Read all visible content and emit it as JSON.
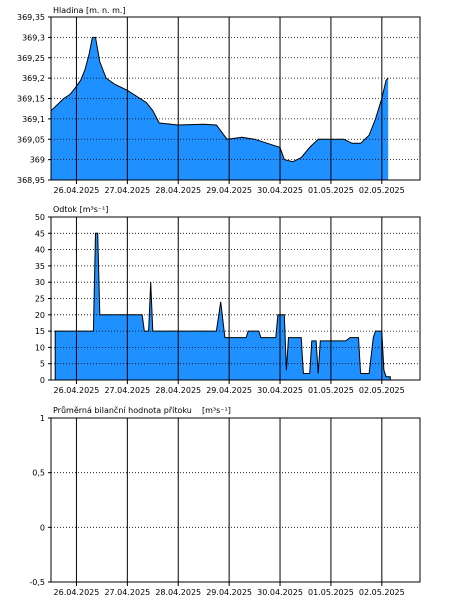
{
  "colors": {
    "fill": "#1e90ff",
    "line": "#000000",
    "grid": "#000000",
    "background": "#ffffff"
  },
  "dates": [
    "26.04.2025",
    "27.04.2025",
    "28.04.2025",
    "29.04.2025",
    "30.04.2025",
    "01.05.2025",
    "02.05.2025"
  ],
  "chart_data": [
    {
      "type": "area",
      "title": "Hladina [m. n. m.]",
      "xlim": [
        "2025-04-25T12:00",
        "2025-05-02T18:00"
      ],
      "ylim": [
        368.95,
        369.35
      ],
      "yticks": [
        368.95,
        369,
        369.05,
        369.1,
        369.15,
        369.2,
        369.25,
        369.3,
        369.35
      ],
      "ytick_labels": [
        "368,95",
        "369",
        "369,05",
        "369,1",
        "369,15",
        "369,2",
        "369,25",
        "369,3",
        "369,35"
      ],
      "x_labels": [
        "26.04.2025",
        "27.04.2025",
        "28.04.2025",
        "29.04.2025",
        "30.04.2025",
        "01.05.2025",
        "02.05.2025"
      ],
      "grid": true,
      "series": [
        {
          "values": [
            {
              "x": "2025-04-25T12:00",
              "y": 369.12
            },
            {
              "x": "2025-04-25T15:00",
              "y": 369.135
            },
            {
              "x": "2025-04-25T18:00",
              "y": 369.15
            },
            {
              "x": "2025-04-25T21:00",
              "y": 369.16
            },
            {
              "x": "2025-04-26T00:00",
              "y": 369.18
            },
            {
              "x": "2025-04-26T02:00",
              "y": 369.195
            },
            {
              "x": "2025-04-26T04:00",
              "y": 369.22
            },
            {
              "x": "2025-04-26T06:00",
              "y": 369.26
            },
            {
              "x": "2025-04-26T07:30",
              "y": 369.3
            },
            {
              "x": "2025-04-26T09:00",
              "y": 369.3
            },
            {
              "x": "2025-04-26T11:00",
              "y": 369.24
            },
            {
              "x": "2025-04-26T14:00",
              "y": 369.2
            },
            {
              "x": "2025-04-26T18:00",
              "y": 369.185
            },
            {
              "x": "2025-04-27T00:00",
              "y": 369.17
            },
            {
              "x": "2025-04-27T06:00",
              "y": 369.15
            },
            {
              "x": "2025-04-27T09:00",
              "y": 369.14
            },
            {
              "x": "2025-04-27T12:00",
              "y": 369.12
            },
            {
              "x": "2025-04-27T15:00",
              "y": 369.09
            },
            {
              "x": "2025-04-28T00:00",
              "y": 369.085
            },
            {
              "x": "2025-04-28T12:00",
              "y": 369.087
            },
            {
              "x": "2025-04-28T18:00",
              "y": 369.085
            },
            {
              "x": "2025-04-28T23:00",
              "y": 369.05
            },
            {
              "x": "2025-04-29T06:00",
              "y": 369.055
            },
            {
              "x": "2025-04-29T12:00",
              "y": 369.05
            },
            {
              "x": "2025-04-29T18:00",
              "y": 369.04
            },
            {
              "x": "2025-04-30T00:00",
              "y": 369.03
            },
            {
              "x": "2025-04-30T02:00",
              "y": 369.0
            },
            {
              "x": "2025-04-30T06:00",
              "y": 368.995
            },
            {
              "x": "2025-04-30T10:00",
              "y": 369.005
            },
            {
              "x": "2025-04-30T14:00",
              "y": 369.03
            },
            {
              "x": "2025-04-30T18:00",
              "y": 369.05
            },
            {
              "x": "2025-05-01T00:00",
              "y": 369.05
            },
            {
              "x": "2025-05-01T06:00",
              "y": 369.05
            },
            {
              "x": "2025-05-01T10:00",
              "y": 369.04
            },
            {
              "x": "2025-05-01T14:00",
              "y": 369.04
            },
            {
              "x": "2025-05-01T18:00",
              "y": 369.06
            },
            {
              "x": "2025-05-01T21:00",
              "y": 369.1
            },
            {
              "x": "2025-05-02T00:00",
              "y": 369.15
            },
            {
              "x": "2025-05-02T02:00",
              "y": 369.195
            },
            {
              "x": "2025-05-02T03:00",
              "y": 369.2
            }
          ]
        }
      ]
    },
    {
      "type": "area",
      "title": "Odtok [m³s⁻¹]",
      "xlim": [
        "2025-04-25T12:00",
        "2025-05-02T18:00"
      ],
      "ylim": [
        0,
        50
      ],
      "yticks": [
        0,
        5,
        10,
        15,
        20,
        25,
        30,
        35,
        40,
        45,
        50
      ],
      "ytick_labels": [
        "0",
        "5",
        "10",
        "15",
        "20",
        "25",
        "30",
        "35",
        "40",
        "45",
        "50"
      ],
      "x_labels": [
        "26.04.2025",
        "27.04.2025",
        "28.04.2025",
        "29.04.2025",
        "30.04.2025",
        "01.05.2025",
        "02.05.2025"
      ],
      "grid": true,
      "series": [
        {
          "values": [
            {
              "x": "2025-04-25T14:00",
              "y": 0
            },
            {
              "x": "2025-04-25T14:00",
              "y": 15
            },
            {
              "x": "2025-04-26T06:00",
              "y": 15
            },
            {
              "x": "2025-04-26T08:00",
              "y": 15
            },
            {
              "x": "2025-04-26T09:00",
              "y": 45
            },
            {
              "x": "2025-04-26T10:00",
              "y": 45
            },
            {
              "x": "2025-04-26T11:00",
              "y": 20
            },
            {
              "x": "2025-04-27T07:00",
              "y": 20
            },
            {
              "x": "2025-04-27T08:00",
              "y": 15
            },
            {
              "x": "2025-04-27T10:00",
              "y": 15
            },
            {
              "x": "2025-04-27T11:00",
              "y": 30
            },
            {
              "x": "2025-04-27T12:00",
              "y": 15
            },
            {
              "x": "2025-04-28T18:00",
              "y": 15
            },
            {
              "x": "2025-04-28T20:00",
              "y": 24
            },
            {
              "x": "2025-04-28T22:00",
              "y": 13
            },
            {
              "x": "2025-04-29T08:00",
              "y": 13
            },
            {
              "x": "2025-04-29T09:00",
              "y": 15
            },
            {
              "x": "2025-04-29T14:00",
              "y": 15
            },
            {
              "x": "2025-04-29T15:00",
              "y": 13
            },
            {
              "x": "2025-04-29T22:00",
              "y": 13
            },
            {
              "x": "2025-04-29T23:00",
              "y": 20
            },
            {
              "x": "2025-04-30T02:00",
              "y": 20
            },
            {
              "x": "2025-04-30T03:00",
              "y": 3
            },
            {
              "x": "2025-04-30T04:00",
              "y": 13
            },
            {
              "x": "2025-04-30T10:00",
              "y": 13
            },
            {
              "x": "2025-04-30T11:00",
              "y": 2
            },
            {
              "x": "2025-04-30T14:00",
              "y": 2
            },
            {
              "x": "2025-04-30T15:00",
              "y": 12
            },
            {
              "x": "2025-04-30T17:00",
              "y": 12
            },
            {
              "x": "2025-04-30T18:00",
              "y": 2
            },
            {
              "x": "2025-04-30T19:00",
              "y": 12
            },
            {
              "x": "2025-05-01T07:00",
              "y": 12
            },
            {
              "x": "2025-05-01T09:00",
              "y": 13
            },
            {
              "x": "2025-05-01T13:00",
              "y": 13
            },
            {
              "x": "2025-05-01T14:00",
              "y": 2
            },
            {
              "x": "2025-05-01T18:00",
              "y": 2
            },
            {
              "x": "2025-05-01T20:00",
              "y": 13
            },
            {
              "x": "2025-05-01T21:00",
              "y": 15
            },
            {
              "x": "2025-05-02T00:00",
              "y": 15
            },
            {
              "x": "2025-05-02T01:00",
              "y": 3
            },
            {
              "x": "2025-05-02T02:00",
              "y": 1
            },
            {
              "x": "2025-05-02T04:00",
              "y": 1
            },
            {
              "x": "2025-05-02T04:00",
              "y": 0
            }
          ]
        }
      ]
    },
    {
      "type": "line",
      "title": "Průměrná bilanční hodnota přítoku",
      "unit": "[m³s⁻¹]",
      "xlim": [
        "2025-04-25T12:00",
        "2025-05-02T18:00"
      ],
      "ylim": [
        -0.5,
        1
      ],
      "yticks": [
        -0.5,
        0,
        0.5,
        1
      ],
      "ytick_labels": [
        "-0,5",
        "0",
        "0,5",
        "1"
      ],
      "x_labels": [
        "26.04.2025",
        "27.04.2025",
        "28.04.2025",
        "29.04.2025",
        "30.04.2025",
        "01.05.2025",
        "02.05.2025"
      ],
      "grid": true,
      "series": []
    }
  ]
}
